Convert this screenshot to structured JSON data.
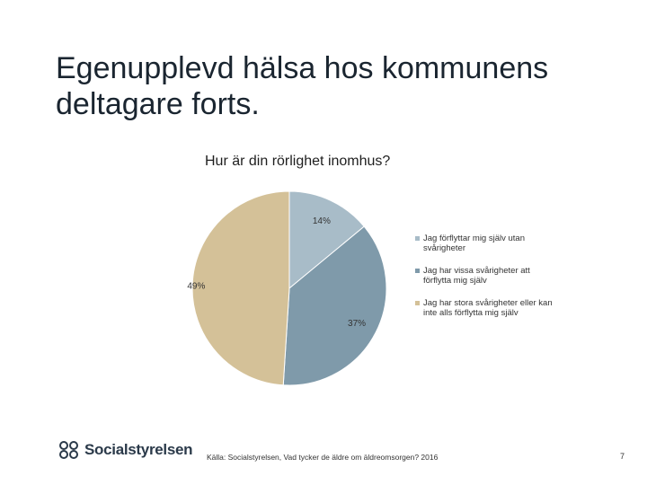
{
  "slide": {
    "title": "Egenupplevd hälsa hos kommunens deltagare forts.",
    "source": "Källa: Socialstyrelsen, Vad tycker de äldre om äldreomsorgen? 2016",
    "page_number": "7",
    "logo_text": "Socialstyrelsen"
  },
  "chart_data": {
    "type": "pie",
    "title": "Hur är din rörlighet inomhus?",
    "legend_position": "right",
    "slices": [
      {
        "label": "Jag förflyttar mig själv utan svårigheter",
        "value": 14,
        "display": "14%",
        "color": "#a8bcc8"
      },
      {
        "label": "Jag har vissa svårigheter att förflytta mig själv",
        "value": 37,
        "display": "37%",
        "color": "#7f9aaa"
      },
      {
        "label": "Jag har stora svårigheter eller kan inte alls förflytta mig själv",
        "value": 49,
        "display": "49%",
        "color": "#d4c198"
      }
    ]
  }
}
